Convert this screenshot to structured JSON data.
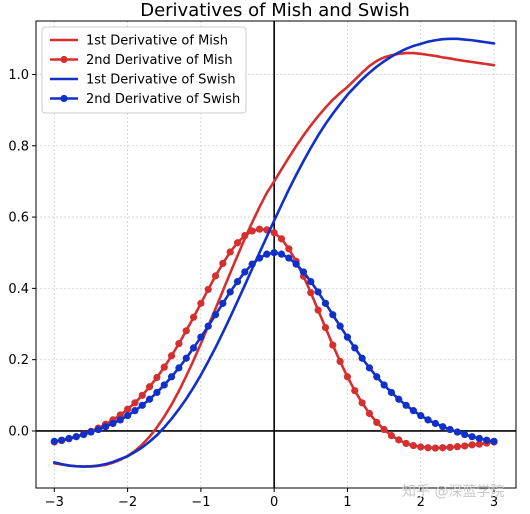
{
  "chart_data": {
    "type": "line",
    "title": "Derivatives of Mish and Swish",
    "xlabel": "",
    "ylabel": "",
    "xlim": [
      -3.25,
      3.3
    ],
    "ylim": [
      -0.16,
      1.15
    ],
    "xticks": [
      -3,
      -2,
      -1,
      0,
      1,
      2,
      3
    ],
    "xtick_labels": [
      "−3",
      "−2",
      "−1",
      "0",
      "1",
      "2",
      "3"
    ],
    "yticks": [
      0.0,
      0.2,
      0.4,
      0.6,
      0.8,
      1.0
    ],
    "ytick_labels": [
      "0.0",
      "0.2",
      "0.4",
      "0.6",
      "0.8",
      "1.0"
    ],
    "grid": true,
    "legend_position": "top-left",
    "x": [
      -3.0,
      -2.9,
      -2.8,
      -2.7,
      -2.6,
      -2.5,
      -2.4,
      -2.3,
      -2.2,
      -2.1,
      -2.0,
      -1.9,
      -1.8,
      -1.7,
      -1.6,
      -1.5,
      -1.4,
      -1.3,
      -1.2,
      -1.1,
      -1.0,
      -0.9,
      -0.8,
      -0.7,
      -0.6,
      -0.5,
      -0.4,
      -0.3,
      -0.2,
      -0.1,
      0.0,
      0.1,
      0.2,
      0.3,
      0.4,
      0.5,
      0.6,
      0.7,
      0.8,
      0.9,
      1.0,
      1.1,
      1.2,
      1.3,
      1.4,
      1.5,
      1.6,
      1.7,
      1.8,
      1.9,
      2.0,
      2.1,
      2.2,
      2.3,
      2.4,
      2.5,
      2.6,
      2.7,
      2.8,
      2.9,
      3.0
    ],
    "series": [
      {
        "name": "1st Derivative of Mish",
        "color": "#d62f2f",
        "markers": false,
        "values": [
          -0.091,
          -0.094,
          -0.097,
          -0.099,
          -0.1,
          -0.1,
          -0.098,
          -0.095,
          -0.089,
          -0.081,
          -0.07,
          -0.056,
          -0.038,
          -0.016,
          0.01,
          0.04,
          0.074,
          0.112,
          0.154,
          0.198,
          0.245,
          0.294,
          0.343,
          0.393,
          0.443,
          0.492,
          0.54,
          0.585,
          0.628,
          0.668,
          0.7,
          0.734,
          0.767,
          0.799,
          0.829,
          0.857,
          0.883,
          0.907,
          0.929,
          0.948,
          0.965,
          0.985,
          1.005,
          1.024,
          1.038,
          1.048,
          1.054,
          1.058,
          1.06,
          1.06,
          1.058,
          1.055,
          1.052,
          1.048,
          1.045,
          1.041,
          1.038,
          1.035,
          1.032,
          1.029,
          1.026
        ]
      },
      {
        "name": "2nd Derivative of Mish",
        "color": "#d62f2f",
        "markers": true,
        "values": [
          -0.031,
          -0.027,
          -0.022,
          -0.016,
          -0.009,
          -0.001,
          0.008,
          0.019,
          0.031,
          0.045,
          0.061,
          0.079,
          0.1,
          0.124,
          0.15,
          0.179,
          0.211,
          0.245,
          0.281,
          0.319,
          0.358,
          0.397,
          0.435,
          0.47,
          0.502,
          0.528,
          0.548,
          0.561,
          0.566,
          0.564,
          0.556,
          0.539,
          0.511,
          0.476,
          0.434,
          0.388,
          0.339,
          0.29,
          0.241,
          0.195,
          0.152,
          0.113,
          0.079,
          0.049,
          0.024,
          0.004,
          -0.013,
          -0.025,
          -0.035,
          -0.041,
          -0.045,
          -0.047,
          -0.048,
          -0.047,
          -0.046,
          -0.044,
          -0.042,
          -0.039,
          -0.037,
          -0.034,
          -0.031
        ]
      },
      {
        "name": "1st Derivative of Swish",
        "color": "#1030c8",
        "markers": false,
        "values": [
          -0.088,
          -0.093,
          -0.097,
          -0.099,
          -0.1,
          -0.099,
          -0.097,
          -0.093,
          -0.087,
          -0.079,
          -0.071,
          -0.059,
          -0.046,
          -0.03,
          -0.012,
          0.01,
          0.034,
          0.061,
          0.09,
          0.122,
          0.157,
          0.195,
          0.234,
          0.276,
          0.319,
          0.364,
          0.409,
          0.455,
          0.5,
          0.545,
          0.59,
          0.634,
          0.677,
          0.718,
          0.757,
          0.794,
          0.829,
          0.861,
          0.89,
          0.917,
          0.943,
          0.965,
          0.986,
          1.005,
          1.022,
          1.037,
          1.05,
          1.062,
          1.072,
          1.08,
          1.086,
          1.092,
          1.096,
          1.099,
          1.1,
          1.1,
          1.098,
          1.096,
          1.093,
          1.09,
          1.087
        ]
      },
      {
        "name": "2nd Derivative of Swish",
        "color": "#1030c8",
        "markers": true,
        "values": [
          -0.029,
          -0.026,
          -0.021,
          -0.016,
          -0.01,
          -0.003,
          0.004,
          0.012,
          0.021,
          0.031,
          0.043,
          0.057,
          0.072,
          0.089,
          0.108,
          0.129,
          0.152,
          0.177,
          0.204,
          0.233,
          0.263,
          0.294,
          0.326,
          0.358,
          0.39,
          0.419,
          0.446,
          0.468,
          0.485,
          0.496,
          0.5,
          0.496,
          0.485,
          0.468,
          0.446,
          0.419,
          0.39,
          0.358,
          0.326,
          0.294,
          0.263,
          0.233,
          0.204,
          0.177,
          0.152,
          0.129,
          0.108,
          0.089,
          0.072,
          0.057,
          0.043,
          0.031,
          0.021,
          0.012,
          0.004,
          -0.003,
          -0.01,
          -0.016,
          -0.021,
          -0.026,
          -0.029
        ]
      }
    ]
  },
  "watermark": "知乎 @深蓝学院"
}
